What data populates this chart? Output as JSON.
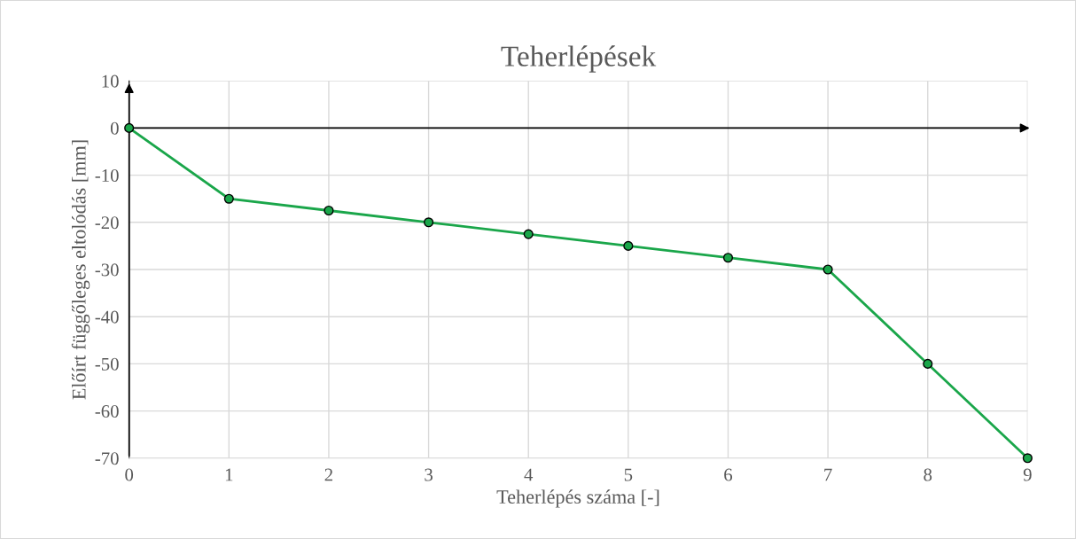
{
  "chart_data": {
    "type": "line",
    "title": "Teherlépések",
    "xlabel": "Teherlépés száma [-]",
    "ylabel": "Előírt függőleges eltolódás [mm]",
    "x": [
      0,
      1,
      2,
      3,
      4,
      5,
      6,
      7,
      8,
      9
    ],
    "series": [
      {
        "color": "#1aa64a",
        "values": [
          0,
          -15,
          -17.5,
          -20,
          -22.5,
          -25,
          -27.5,
          -30,
          -50,
          -70
        ]
      }
    ],
    "xlim": [
      0,
      9
    ],
    "xticks": [
      0,
      1,
      2,
      3,
      4,
      5,
      6,
      7,
      8,
      9
    ],
    "ylim": [
      -70,
      10
    ],
    "yticks": [
      -70,
      -60,
      -50,
      -40,
      -30,
      -20,
      -10,
      0,
      10
    ],
    "ref_lines": [
      {
        "axis": "y",
        "value": 0,
        "color": "#000000",
        "line_style": "solid"
      }
    ],
    "grid": true,
    "marker": "circle",
    "line_style": "solid"
  }
}
